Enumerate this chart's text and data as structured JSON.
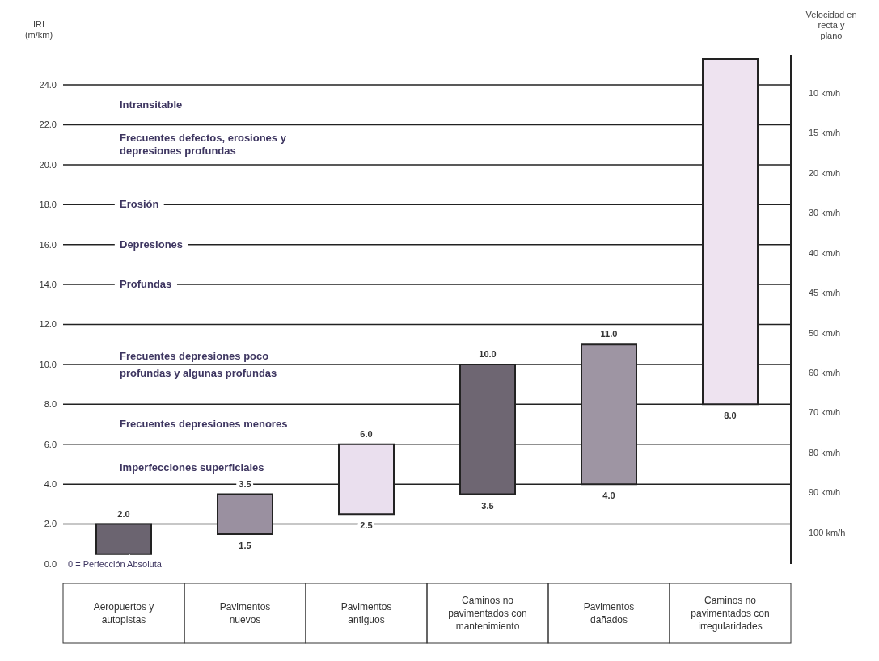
{
  "chart_data": {
    "type": "bar",
    "ylabel": "IRI (m/km)",
    "categories": [
      "Aeropuertos y autopistas",
      "Pavimentos nuevos",
      "Pavimentos antiguos",
      "Caminos no pavimentados con mantenimiento",
      "Pavimentos dañados",
      "Caminos no pavimentados con irregularidades"
    ],
    "base": [
      0.5,
      1.5,
      2.5,
      3.5,
      4.0,
      8.0
    ],
    "values": [
      1.5,
      2.0,
      3.5,
      6.5,
      7.0,
      17.3
    ],
    "colors": [
      "#6b6470",
      "#9a90a0",
      "#eadfee",
      "#6e6672",
      "#9e95a3",
      "#eee3f0"
    ],
    "ylim": [
      0,
      25.5
    ],
    "yticks": [
      {
        "value": 0,
        "label": "0.0"
      },
      {
        "value": 2,
        "label": "2.0"
      },
      {
        "value": 4,
        "label": "4.0"
      },
      {
        "value": 6,
        "label": "6.0"
      },
      {
        "value": 8,
        "label": "8.0"
      },
      {
        "value": 10,
        "label": "10.0"
      },
      {
        "value": 12,
        "label": "12.0"
      },
      {
        "value": 14,
        "label": "14.0"
      },
      {
        "value": 16,
        "label": "16.0"
      },
      {
        "value": 18,
        "label": "18.0"
      },
      {
        "value": 20,
        "label": "20.0"
      },
      {
        "value": 22,
        "label": "22.0"
      },
      {
        "value": 24,
        "label": "24.0"
      }
    ],
    "ref_lines": [
      {
        "axis": "y",
        "value": 2,
        "label": "100 km/h"
      },
      {
        "axis": "y",
        "value": 4,
        "label": "90 km/h"
      },
      {
        "axis": "y",
        "value": 6,
        "label": "80 km/h"
      },
      {
        "axis": "y",
        "value": 8,
        "label": "70 km/h"
      },
      {
        "axis": "y",
        "value": 10,
        "label": "60 km/h"
      },
      {
        "axis": "y",
        "value": 12,
        "label": "50 km/h"
      },
      {
        "axis": "y",
        "value": 14,
        "label": "45 km/h"
      },
      {
        "axis": "y",
        "value": 16,
        "label": "40 km/h"
      },
      {
        "axis": "y",
        "value": 18,
        "label": "30 km/h"
      },
      {
        "axis": "y",
        "value": 20,
        "label": "20 km/h"
      },
      {
        "axis": "y",
        "value": 22,
        "label": "15 km/h"
      },
      {
        "axis": "y",
        "value": 24,
        "label": "10 km/h"
      }
    ],
    "annotations": [
      "Velocidad en recta y plano",
      "Intransitable",
      "Frecuentes defectos, erosiones y depresiones profundas",
      {
        "text": "Erosión",
        "y": 18
      },
      {
        "text": "Depresiones",
        "y": 16
      },
      {
        "text": "Profundas",
        "y": 14
      },
      {
        "text": "Frecuentes depresiones poco profundas y algunas profundas",
        "y": 10
      },
      "Frecuentes depresiones menores",
      "Imperfecciones superficiales",
      "0 = Perfección Absoluta",
      {
        "text": "2.0",
        "x": "Aeropuertos y autopistas",
        "y": 2.0
      },
      {
        "text": "3.5",
        "x": "Pavimentos nuevos",
        "y": 3.5
      },
      {
        "text": "1.5",
        "x": "Pavimentos nuevos",
        "y": 1.5
      },
      {
        "text": "6.0",
        "x": "Pavimentos antiguos",
        "y": 6.0
      },
      {
        "text": "2.5",
        "x": "Pavimentos antiguos",
        "y": 2.5
      },
      {
        "text": "10.0",
        "x": "Caminos no pavimentados con mantenimiento",
        "y": 10.0
      },
      {
        "text": "3.5",
        "x": "Caminos no pavimentados con mantenimiento",
        "y": 3.5
      },
      {
        "text": "11.0",
        "x": "Pavimentos dañados",
        "y": 11.0
      },
      {
        "text": "4.0",
        "x": "Pavimentos dañados",
        "y": 4.0
      },
      {
        "text": "8.0",
        "x": "Caminos no pavimentados con irregularidades",
        "y": 8.0
      }
    ]
  }
}
